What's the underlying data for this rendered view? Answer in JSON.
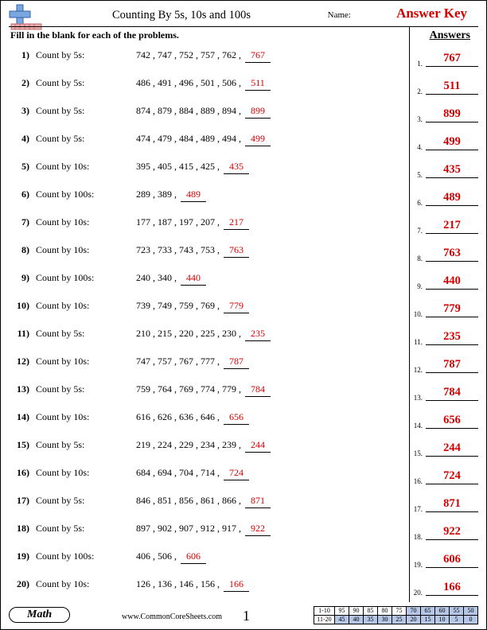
{
  "header": {
    "title": "Counting By 5s, 10s and 100s",
    "name_label": "Name:",
    "name_value": "Answer Key",
    "instruction": "Fill in the blank for each of the problems.",
    "answers_heading": "Answers"
  },
  "problems": [
    {
      "n": "1)",
      "label": "Count by 5s:",
      "seq": [
        "742",
        "747",
        "752",
        "757",
        "762"
      ],
      "ans": "767"
    },
    {
      "n": "2)",
      "label": "Count by 5s:",
      "seq": [
        "486",
        "491",
        "496",
        "501",
        "506"
      ],
      "ans": "511"
    },
    {
      "n": "3)",
      "label": "Count by 5s:",
      "seq": [
        "874",
        "879",
        "884",
        "889",
        "894"
      ],
      "ans": "899"
    },
    {
      "n": "4)",
      "label": "Count by 5s:",
      "seq": [
        "474",
        "479",
        "484",
        "489",
        "494"
      ],
      "ans": "499"
    },
    {
      "n": "5)",
      "label": "Count by 10s:",
      "seq": [
        "395",
        "405",
        "415",
        "425"
      ],
      "ans": "435"
    },
    {
      "n": "6)",
      "label": "Count by 100s:",
      "seq": [
        "289",
        "389"
      ],
      "ans": "489"
    },
    {
      "n": "7)",
      "label": "Count by 10s:",
      "seq": [
        "177",
        "187",
        "197",
        "207"
      ],
      "ans": "217"
    },
    {
      "n": "8)",
      "label": "Count by 10s:",
      "seq": [
        "723",
        "733",
        "743",
        "753"
      ],
      "ans": "763"
    },
    {
      "n": "9)",
      "label": "Count by 100s:",
      "seq": [
        "240",
        "340"
      ],
      "ans": "440"
    },
    {
      "n": "10)",
      "label": "Count by 10s:",
      "seq": [
        "739",
        "749",
        "759",
        "769"
      ],
      "ans": "779"
    },
    {
      "n": "11)",
      "label": "Count by 5s:",
      "seq": [
        "210",
        "215",
        "220",
        "225",
        "230"
      ],
      "ans": "235"
    },
    {
      "n": "12)",
      "label": "Count by 10s:",
      "seq": [
        "747",
        "757",
        "767",
        "777"
      ],
      "ans": "787"
    },
    {
      "n": "13)",
      "label": "Count by 5s:",
      "seq": [
        "759",
        "764",
        "769",
        "774",
        "779"
      ],
      "ans": "784"
    },
    {
      "n": "14)",
      "label": "Count by 10s:",
      "seq": [
        "616",
        "626",
        "636",
        "646"
      ],
      "ans": "656"
    },
    {
      "n": "15)",
      "label": "Count by 5s:",
      "seq": [
        "219",
        "224",
        "229",
        "234",
        "239"
      ],
      "ans": "244"
    },
    {
      "n": "16)",
      "label": "Count by 10s:",
      "seq": [
        "684",
        "694",
        "704",
        "714"
      ],
      "ans": "724"
    },
    {
      "n": "17)",
      "label": "Count by 5s:",
      "seq": [
        "846",
        "851",
        "856",
        "861",
        "866"
      ],
      "ans": "871"
    },
    {
      "n": "18)",
      "label": "Count by 5s:",
      "seq": [
        "897",
        "902",
        "907",
        "912",
        "917"
      ],
      "ans": "922"
    },
    {
      "n": "19)",
      "label": "Count by 100s:",
      "seq": [
        "406",
        "506"
      ],
      "ans": "606"
    },
    {
      "n": "20)",
      "label": "Count by 10s:",
      "seq": [
        "126",
        "136",
        "146",
        "156"
      ],
      "ans": "166"
    }
  ],
  "answers": [
    {
      "n": "1.",
      "v": "767"
    },
    {
      "n": "2.",
      "v": "511"
    },
    {
      "n": "3.",
      "v": "899"
    },
    {
      "n": "4.",
      "v": "499"
    },
    {
      "n": "5.",
      "v": "435"
    },
    {
      "n": "6.",
      "v": "489"
    },
    {
      "n": "7.",
      "v": "217"
    },
    {
      "n": "8.",
      "v": "763"
    },
    {
      "n": "9.",
      "v": "440"
    },
    {
      "n": "10.",
      "v": "779"
    },
    {
      "n": "11.",
      "v": "235"
    },
    {
      "n": "12.",
      "v": "787"
    },
    {
      "n": "13.",
      "v": "784"
    },
    {
      "n": "14.",
      "v": "656"
    },
    {
      "n": "15.",
      "v": "244"
    },
    {
      "n": "16.",
      "v": "724"
    },
    {
      "n": "17.",
      "v": "871"
    },
    {
      "n": "18.",
      "v": "922"
    },
    {
      "n": "19.",
      "v": "606"
    },
    {
      "n": "20.",
      "v": "166"
    }
  ],
  "footer": {
    "subject": "Math",
    "site": "www.CommonCoreSheets.com",
    "page_number": "1",
    "score_rows": [
      {
        "label": "1-10",
        "cells": [
          "95",
          "90",
          "85",
          "80",
          "75",
          "70",
          "65",
          "60",
          "55",
          "50"
        ],
        "shade_from": 5
      },
      {
        "label": "11-20",
        "cells": [
          "45",
          "40",
          "35",
          "30",
          "25",
          "20",
          "15",
          "10",
          "5",
          "0"
        ],
        "shade_from": 0
      }
    ]
  },
  "colors": {
    "answer_red": "#d40000",
    "shade_blue": "#b6c6e6",
    "cross_blue": "#7aa7e0",
    "cross_dark": "#3560a8",
    "ruler_pink": "#e8a9a9",
    "ruler_dark": "#c07070"
  }
}
